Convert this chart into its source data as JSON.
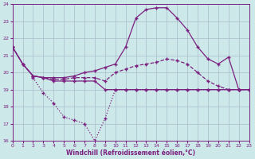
{
  "title": "Windchill (Refroidissement éolien,°C)",
  "bg_color": "#cce8e8",
  "line_color": "#7b2080",
  "grid_color": "#aabbcc",
  "xlim": [
    0,
    23
  ],
  "ylim": [
    16,
    24
  ],
  "xticks": [
    0,
    1,
    2,
    3,
    4,
    5,
    6,
    7,
    8,
    9,
    10,
    11,
    12,
    13,
    14,
    15,
    16,
    17,
    18,
    19,
    20,
    21,
    22,
    23
  ],
  "yticks": [
    16,
    17,
    18,
    19,
    20,
    21,
    22,
    23,
    24
  ],
  "lineA_x": [
    0,
    1,
    2,
    3,
    4,
    5,
    6,
    7,
    8,
    9,
    10,
    11,
    12,
    13,
    14,
    15,
    16,
    17,
    18,
    19,
    20,
    21,
    22,
    23
  ],
  "lineA_y": [
    21.5,
    20.5,
    19.8,
    19.7,
    19.7,
    19.7,
    19.8,
    20.0,
    20.1,
    20.3,
    20.5,
    21.5,
    23.2,
    23.7,
    23.8,
    23.8,
    23.2,
    22.5,
    21.5,
    20.8,
    20.5,
    20.9,
    19.0,
    19.0
  ],
  "lineB_x": [
    0,
    1,
    2,
    3,
    4,
    5,
    6,
    7,
    8,
    9,
    10,
    11,
    12,
    13,
    14,
    15,
    16,
    17,
    18,
    19,
    20,
    21,
    22,
    23
  ],
  "lineB_y": [
    21.5,
    20.5,
    19.8,
    19.7,
    19.6,
    19.6,
    19.7,
    19.7,
    19.7,
    19.5,
    20.0,
    20.2,
    20.4,
    20.5,
    20.6,
    20.8,
    20.7,
    20.5,
    20.0,
    19.5,
    19.2,
    19.0,
    19.0,
    19.0
  ],
  "lineC_x": [
    0,
    1,
    2,
    3,
    4,
    5,
    6,
    7,
    8,
    9,
    10,
    11,
    12,
    13,
    14,
    15,
    16,
    17,
    18,
    19,
    20,
    21,
    22,
    23
  ],
  "lineC_y": [
    21.5,
    20.5,
    19.8,
    19.7,
    19.5,
    19.5,
    19.5,
    19.5,
    19.5,
    19.0,
    19.0,
    19.0,
    19.0,
    19.0,
    19.0,
    19.0,
    19.0,
    19.0,
    19.0,
    19.0,
    19.0,
    19.0,
    19.0,
    19.0
  ],
  "lineD_x": [
    2,
    3,
    4,
    5,
    6,
    7,
    8,
    9,
    10,
    11,
    12,
    13,
    14,
    15,
    16,
    17,
    18,
    19,
    20,
    21,
    22,
    23
  ],
  "lineD_y": [
    19.7,
    18.8,
    18.2,
    17.4,
    17.2,
    17.0,
    16.0,
    17.3,
    19.0,
    19.0,
    19.0,
    19.0,
    19.0,
    19.0,
    19.0,
    19.0,
    19.0,
    19.0,
    19.0,
    19.0,
    19.0,
    19.0
  ]
}
